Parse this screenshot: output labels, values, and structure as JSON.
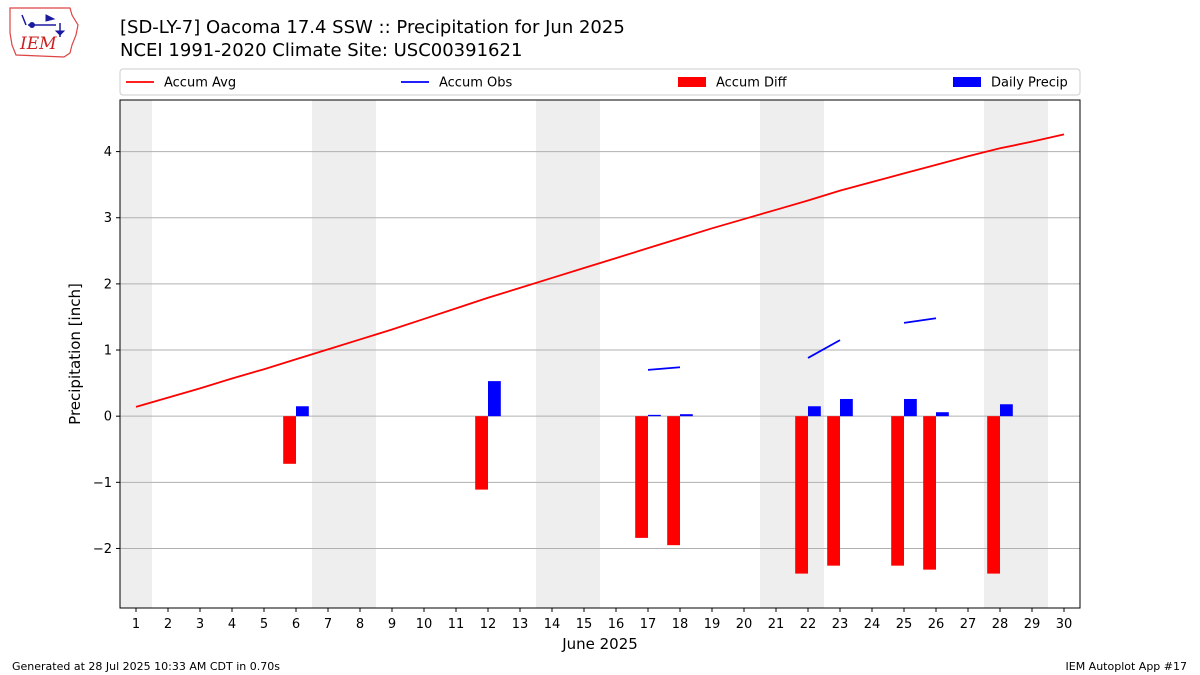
{
  "title": "[SD-LY-7] Oacoma 17.4 SSW :: Precipitation for Jun 2025",
  "subtitle": "NCEI 1991-2020 Climate Site: USC00391621",
  "logo_text": "IEM",
  "footer_left": "Generated at 28 Jul 2025 10:33 AM CDT in 0.70s",
  "footer_right": "IEM Autoplot App #17",
  "colors": {
    "accum_avg": "#ff0000",
    "accum_obs": "#0000ff",
    "accum_diff": "#ff0000",
    "daily_precip": "#0000ff",
    "weekend_shade": "#eeeeee",
    "grid": "#b0b0b0"
  },
  "chart_data": {
    "type": "bar",
    "xlabel": "June 2025",
    "ylabel": "Precipitation [inch]",
    "xlim": [
      0.5,
      30.5
    ],
    "ylim": [
      -2.9,
      4.78
    ],
    "grid": "horizontal",
    "legend_placement": "top",
    "x_ticks": [
      1,
      2,
      3,
      4,
      5,
      6,
      7,
      8,
      9,
      10,
      11,
      12,
      13,
      14,
      15,
      16,
      17,
      18,
      19,
      20,
      21,
      22,
      23,
      24,
      25,
      26,
      27,
      28,
      29,
      30
    ],
    "y_ticks": [
      -2,
      -1,
      0,
      1,
      2,
      3,
      4
    ],
    "y_tick_labels": [
      "−2",
      "−1",
      "0",
      "1",
      "2",
      "3",
      "4"
    ],
    "weekend_shading": [
      [
        0.5,
        1.5
      ],
      [
        6.5,
        8.5
      ],
      [
        13.5,
        15.5
      ],
      [
        20.5,
        22.5
      ],
      [
        27.5,
        29.5
      ]
    ],
    "legend": [
      {
        "name": "Accum Avg",
        "kind": "line",
        "color": "#ff0000"
      },
      {
        "name": "Accum Obs",
        "kind": "line",
        "color": "#0000ff"
      },
      {
        "name": "Accum Diff",
        "kind": "bar",
        "color": "#ff0000"
      },
      {
        "name": "Daily Precip",
        "kind": "bar",
        "color": "#0000ff"
      }
    ],
    "accum_avg": [
      [
        1,
        0.14
      ],
      [
        2,
        0.28
      ],
      [
        3,
        0.42
      ],
      [
        4,
        0.57
      ],
      [
        5,
        0.71
      ],
      [
        6,
        0.86
      ],
      [
        7,
        1.01
      ],
      [
        8,
        1.16
      ],
      [
        9,
        1.31
      ],
      [
        10,
        1.47
      ],
      [
        11,
        1.63
      ],
      [
        12,
        1.79
      ],
      [
        13,
        1.94
      ],
      [
        14,
        2.09
      ],
      [
        15,
        2.24
      ],
      [
        16,
        2.39
      ],
      [
        17,
        2.54
      ],
      [
        18,
        2.69
      ],
      [
        19,
        2.84
      ],
      [
        20,
        2.98
      ],
      [
        21,
        3.12
      ],
      [
        22,
        3.26
      ],
      [
        23,
        3.41
      ],
      [
        24,
        3.54
      ],
      [
        25,
        3.67
      ],
      [
        26,
        3.8
      ],
      [
        27,
        3.93
      ],
      [
        28,
        4.05
      ],
      [
        29,
        4.15
      ],
      [
        30,
        4.26
      ]
    ],
    "accum_obs_segments": [
      [
        [
          17,
          0.7
        ],
        [
          18,
          0.74
        ]
      ],
      [
        [
          22,
          0.88
        ],
        [
          23,
          1.15
        ]
      ],
      [
        [
          25,
          1.41
        ],
        [
          26,
          1.48
        ]
      ]
    ],
    "accum_diff": [
      {
        "day": 6,
        "value": -0.72
      },
      {
        "day": 12,
        "value": -1.11
      },
      {
        "day": 17,
        "value": -1.84
      },
      {
        "day": 18,
        "value": -1.95
      },
      {
        "day": 22,
        "value": -2.38
      },
      {
        "day": 23,
        "value": -2.26
      },
      {
        "day": 25,
        "value": -2.26
      },
      {
        "day": 26,
        "value": -2.32
      },
      {
        "day": 28,
        "value": -2.38
      }
    ],
    "daily_precip": [
      {
        "day": 6,
        "value": 0.15
      },
      {
        "day": 12,
        "value": 0.53
      },
      {
        "day": 17,
        "value": 0.02
      },
      {
        "day": 18,
        "value": 0.03
      },
      {
        "day": 22,
        "value": 0.15
      },
      {
        "day": 23,
        "value": 0.26
      },
      {
        "day": 25,
        "value": 0.26
      },
      {
        "day": 26,
        "value": 0.06
      },
      {
        "day": 28,
        "value": 0.18
      }
    ]
  }
}
